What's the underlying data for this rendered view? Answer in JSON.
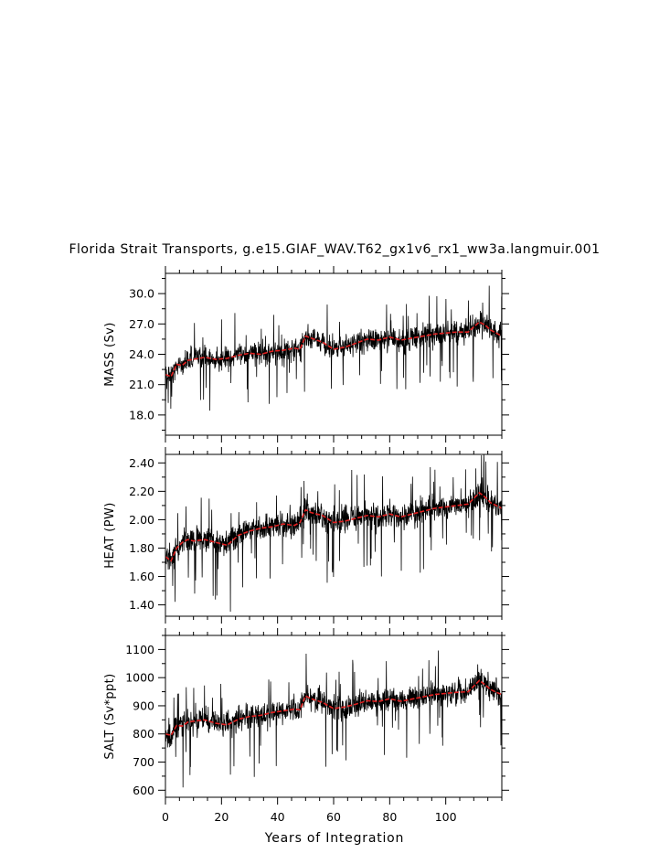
{
  "title": "Florida Strait Transports, g.e15.GIAF_WAV.T62_gx1v6_rx1_ww3a.langmuir.001",
  "xlabel": "Years of Integration",
  "colors": {
    "raw": "#000000",
    "smoothed": "#e02020",
    "frame": "#000000"
  },
  "chart_data": [
    {
      "type": "line",
      "ylabel": "MASS (Sv)",
      "xlim": [
        0,
        120
      ],
      "ylim": [
        16.0,
        32.0
      ],
      "xticks": [
        0,
        20,
        40,
        60,
        80,
        100
      ],
      "xtick_labels": [
        "0",
        "20",
        "40",
        "60",
        "80",
        "100"
      ],
      "yticks": [
        18.0,
        21.0,
        24.0,
        27.0,
        30.0
      ],
      "ytick_labels": [
        "18.0",
        "21.0",
        "24.0",
        "27.0",
        "30.0"
      ],
      "grid": false,
      "series": [
        {
          "style": "raw monthly (black)",
          "x_start": 0,
          "x_end": 120,
          "n": 1440,
          "noise": 1.5
        },
        {
          "style": "smoothed (red)",
          "x": [
            0,
            2,
            4,
            6,
            8,
            10,
            14,
            18,
            22,
            26,
            30,
            34,
            38,
            42,
            46,
            48,
            50,
            52,
            56,
            60,
            64,
            68,
            72,
            76,
            80,
            84,
            88,
            92,
            96,
            100,
            104,
            108,
            112,
            114,
            116,
            118,
            120
          ],
          "values": [
            22.0,
            21.8,
            23.0,
            22.9,
            23.4,
            23.5,
            23.7,
            23.5,
            23.6,
            23.9,
            24.1,
            24.0,
            24.3,
            24.4,
            24.6,
            24.5,
            25.8,
            25.6,
            25.2,
            24.5,
            24.7,
            25.1,
            25.5,
            25.4,
            25.7,
            25.4,
            25.6,
            25.8,
            26.0,
            26.1,
            26.2,
            26.2,
            27.2,
            26.9,
            26.4,
            26.1,
            25.8
          ]
        }
      ]
    },
    {
      "type": "line",
      "ylabel": "HEAT (PW)",
      "xlim": [
        0,
        120
      ],
      "ylim": [
        1.32,
        2.46
      ],
      "xticks": [
        0,
        20,
        40,
        60,
        80,
        100
      ],
      "xtick_labels": [
        "0",
        "20",
        "40",
        "60",
        "80",
        "100"
      ],
      "yticks": [
        1.4,
        1.6,
        1.8,
        2.0,
        2.2,
        2.4
      ],
      "ytick_labels": [
        "1.40",
        "1.60",
        "1.80",
        "2.00",
        "2.20",
        "2.40"
      ],
      "grid": false,
      "series": [
        {
          "style": "raw monthly (black)",
          "x_start": 0,
          "x_end": 120,
          "n": 1440,
          "noise": 0.115
        },
        {
          "style": "smoothed (red)",
          "x": [
            0,
            2,
            4,
            6,
            8,
            10,
            14,
            18,
            22,
            26,
            30,
            34,
            38,
            42,
            46,
            48,
            50,
            52,
            56,
            60,
            64,
            68,
            72,
            76,
            80,
            84,
            88,
            92,
            96,
            100,
            104,
            108,
            112,
            114,
            116,
            118,
            120
          ],
          "values": [
            1.74,
            1.71,
            1.8,
            1.84,
            1.86,
            1.85,
            1.86,
            1.84,
            1.82,
            1.89,
            1.92,
            1.94,
            1.95,
            1.97,
            1.96,
            1.98,
            2.07,
            2.05,
            2.03,
            1.98,
            1.99,
            2.01,
            2.03,
            2.02,
            2.04,
            2.02,
            2.04,
            2.06,
            2.08,
            2.09,
            2.1,
            2.11,
            2.19,
            2.16,
            2.12,
            2.1,
            2.08
          ]
        }
      ]
    },
    {
      "type": "line",
      "ylabel": "SALT (Sv*ppt)",
      "xlim": [
        0,
        120
      ],
      "ylim": [
        575,
        1150
      ],
      "xticks": [
        0,
        20,
        40,
        60,
        80,
        100
      ],
      "xtick_labels": [
        "0",
        "20",
        "40",
        "60",
        "80",
        "100"
      ],
      "yticks": [
        600,
        700,
        800,
        900,
        1000,
        1100
      ],
      "ytick_labels": [
        "600",
        "700",
        "800",
        "900",
        "1000",
        "1100"
      ],
      "grid": false,
      "series": [
        {
          "style": "raw monthly (black)",
          "x_start": 0,
          "x_end": 120,
          "n": 1440,
          "noise": 55
        },
        {
          "style": "smoothed (red)",
          "x": [
            0,
            2,
            4,
            6,
            8,
            10,
            14,
            18,
            22,
            26,
            30,
            34,
            38,
            42,
            46,
            48,
            50,
            52,
            56,
            60,
            64,
            68,
            72,
            76,
            80,
            84,
            88,
            92,
            96,
            100,
            104,
            108,
            112,
            114,
            116,
            118,
            120
          ],
          "values": [
            800,
            795,
            830,
            828,
            842,
            845,
            850,
            838,
            832,
            852,
            862,
            866,
            876,
            882,
            888,
            886,
            935,
            925,
            912,
            890,
            896,
            906,
            918,
            915,
            925,
            916,
            924,
            932,
            940,
            944,
            948,
            950,
            990,
            975,
            958,
            948,
            940
          ]
        }
      ]
    }
  ]
}
